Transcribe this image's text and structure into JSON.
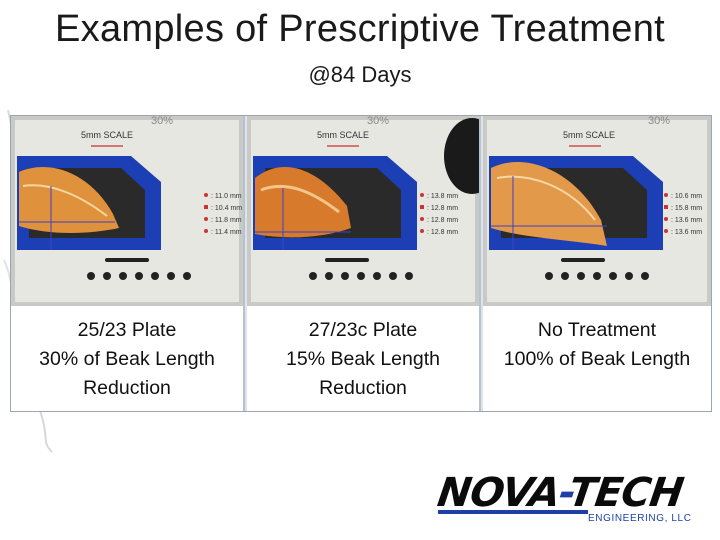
{
  "slide": {
    "title": "Examples of Prescriptive Treatment",
    "subtitle": "@84 Days"
  },
  "panels": [
    {
      "photo": {
        "top_label": "30%",
        "scale_label": "5mm SCALE",
        "measurements": [
          ": 11.0 mm",
          ": 10.4 mm",
          ": 11.8 mm",
          ": 11.4 mm"
        ]
      },
      "caption": [
        "25/23 Plate",
        "30% of Beak Length",
        "Reduction"
      ]
    },
    {
      "photo": {
        "top_label": "30%",
        "scale_label": "5mm SCALE",
        "measurements": [
          ": 13.8 mm",
          ": 12.8 mm",
          ": 12.8 mm",
          ": 12.8 mm"
        ]
      },
      "caption": [
        "27/23c Plate",
        "15% Beak Length",
        "Reduction"
      ]
    },
    {
      "photo": {
        "top_label": "30%",
        "scale_label": "5mm SCALE",
        "measurements": [
          ": 10.6 mm",
          ": 15.8 mm",
          ": 13.6 mm",
          ": 13.6 mm"
        ]
      },
      "caption": [
        "No Treatment",
        "100% of Beak Length"
      ]
    }
  ],
  "logo": {
    "brand_left": "NOVA",
    "brand_dash": "-",
    "brand_right": "TECH",
    "subtext": "ENGINEERING, LLC"
  },
  "colors": {
    "jig_blue": "#1d3fb5",
    "beak": "#e0913c",
    "logo_blue": "#1f3fa8"
  }
}
